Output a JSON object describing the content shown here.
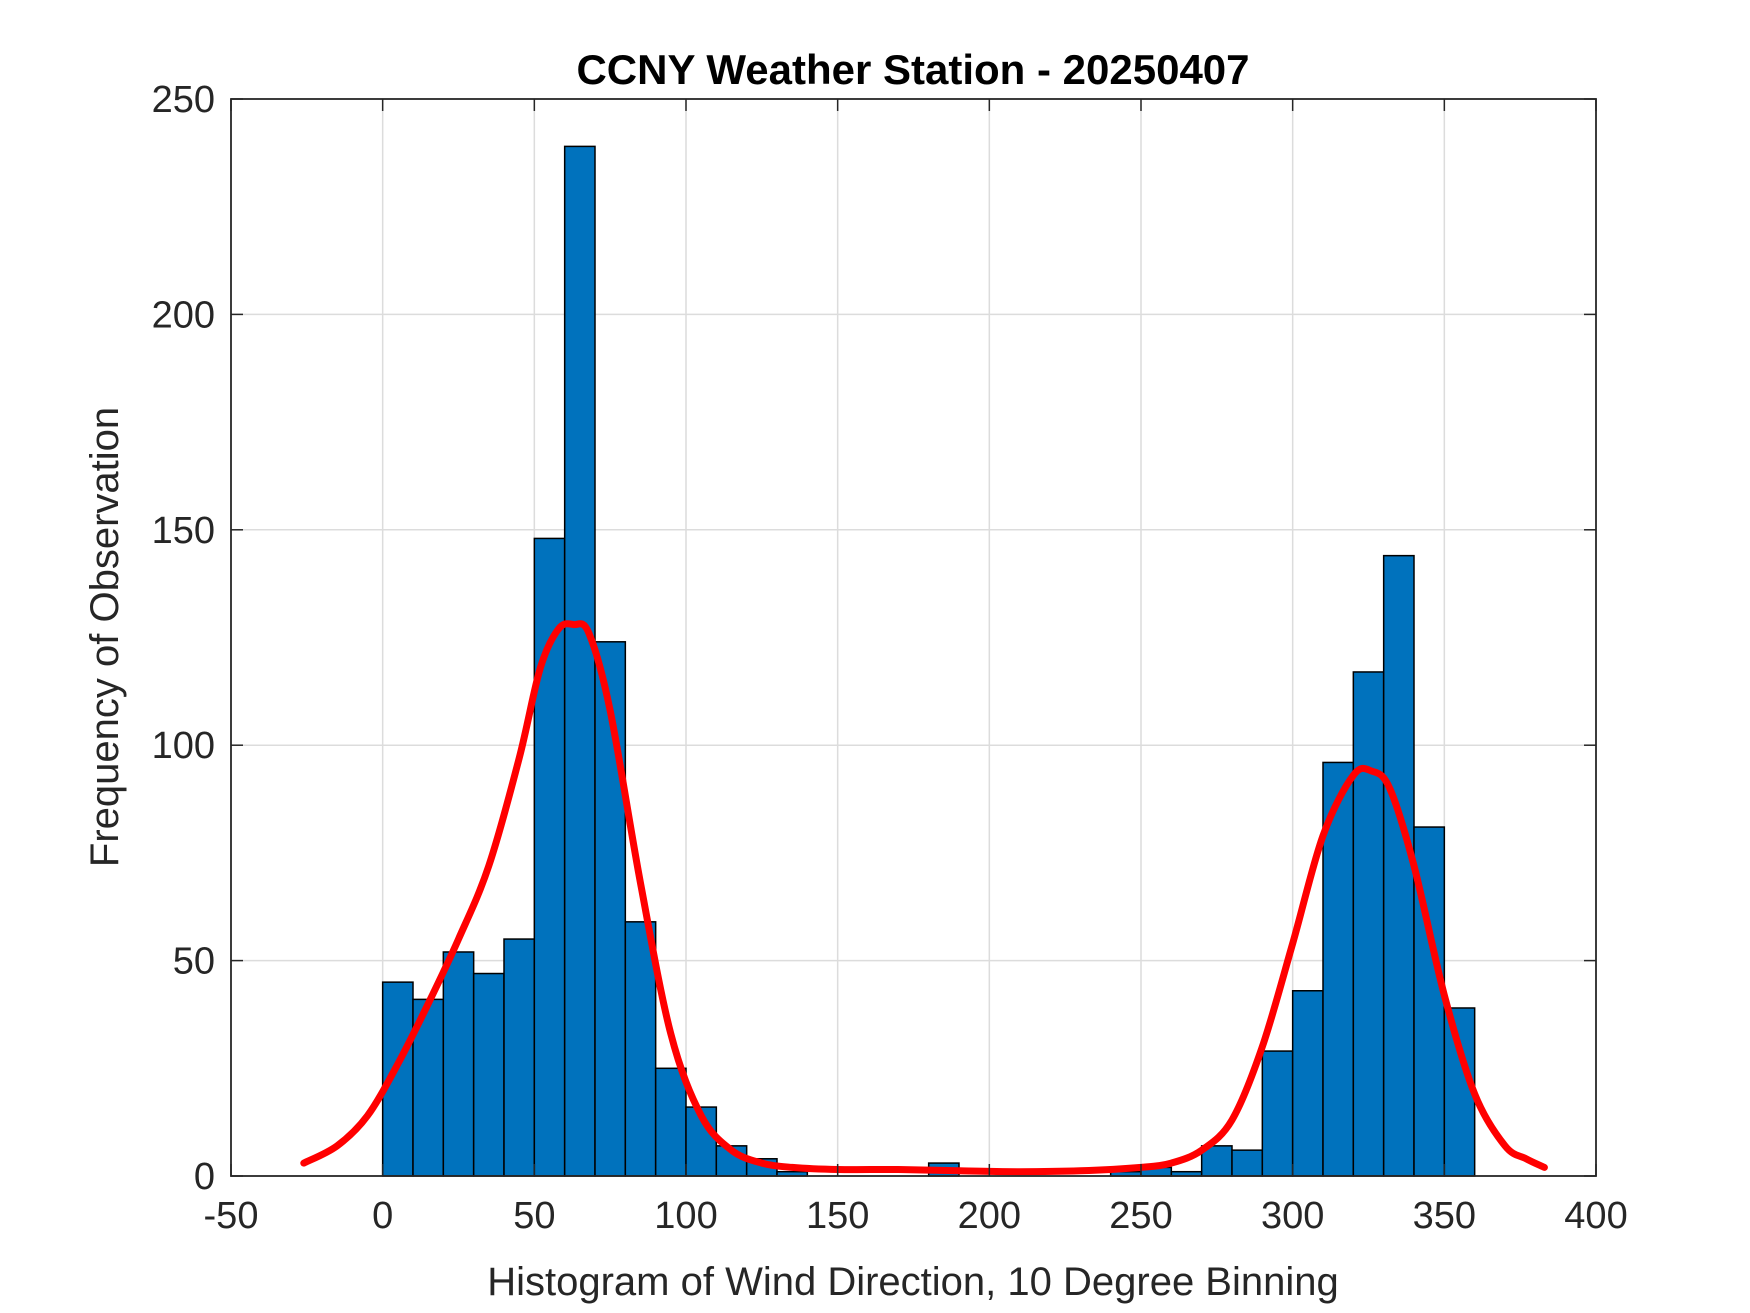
{
  "chart_data": {
    "type": "bar",
    "title": "CCNY Weather Station - 20250407",
    "xlabel": "Histogram of Wind Direction, 10 Degree Binning",
    "ylabel": "Frequency of Observation",
    "xlim": [
      -50,
      400
    ],
    "ylim": [
      0,
      250
    ],
    "xticks": [
      -50,
      0,
      50,
      100,
      150,
      200,
      250,
      300,
      350,
      400
    ],
    "yticks": [
      0,
      50,
      100,
      150,
      200,
      250
    ],
    "grid": true,
    "bin_width": 10,
    "colors": {
      "bar": "#0072BD",
      "bar_edge": "#000000",
      "fit": "#FF0000",
      "grid": "#DCDCDC",
      "axis": "#262626"
    },
    "bins": [
      {
        "start": 0,
        "value": 45
      },
      {
        "start": 10,
        "value": 41
      },
      {
        "start": 20,
        "value": 52
      },
      {
        "start": 30,
        "value": 47
      },
      {
        "start": 40,
        "value": 55
      },
      {
        "start": 50,
        "value": 148
      },
      {
        "start": 60,
        "value": 239
      },
      {
        "start": 70,
        "value": 124
      },
      {
        "start": 80,
        "value": 59
      },
      {
        "start": 90,
        "value": 25
      },
      {
        "start": 100,
        "value": 16
      },
      {
        "start": 110,
        "value": 7
      },
      {
        "start": 120,
        "value": 4
      },
      {
        "start": 130,
        "value": 1
      },
      {
        "start": 140,
        "value": 0
      },
      {
        "start": 150,
        "value": 0
      },
      {
        "start": 160,
        "value": 0
      },
      {
        "start": 170,
        "value": 0
      },
      {
        "start": 180,
        "value": 3
      },
      {
        "start": 190,
        "value": 0
      },
      {
        "start": 200,
        "value": 0
      },
      {
        "start": 210,
        "value": 0
      },
      {
        "start": 220,
        "value": 0
      },
      {
        "start": 230,
        "value": 0
      },
      {
        "start": 240,
        "value": 1
      },
      {
        "start": 250,
        "value": 2
      },
      {
        "start": 260,
        "value": 1
      },
      {
        "start": 270,
        "value": 7
      },
      {
        "start": 280,
        "value": 6
      },
      {
        "start": 290,
        "value": 29
      },
      {
        "start": 300,
        "value": 43
      },
      {
        "start": 310,
        "value": 96
      },
      {
        "start": 320,
        "value": 117
      },
      {
        "start": 330,
        "value": 144
      },
      {
        "start": 340,
        "value": 81
      },
      {
        "start": 350,
        "value": 39
      }
    ],
    "fit_curve": {
      "name": "fitted density",
      "x": [
        -26,
        -15,
        -5,
        5,
        15,
        25,
        35,
        45,
        52,
        58,
        63,
        68,
        75,
        85,
        95,
        105,
        115,
        125,
        135,
        150,
        170,
        190,
        210,
        230,
        250,
        260,
        270,
        280,
        290,
        300,
        310,
        320,
        326,
        332,
        340,
        350,
        360,
        370,
        377,
        383
      ],
      "y": [
        3,
        7,
        14,
        26,
        40,
        55,
        72,
        97,
        118,
        127,
        128,
        126,
        108,
        68,
        33,
        14,
        6,
        3,
        2,
        1.5,
        1.5,
        1.2,
        1,
        1.2,
        2,
        3,
        6,
        13,
        30,
        54,
        79,
        93,
        94,
        90,
        72,
        42,
        19,
        7,
        4,
        2
      ]
    }
  }
}
